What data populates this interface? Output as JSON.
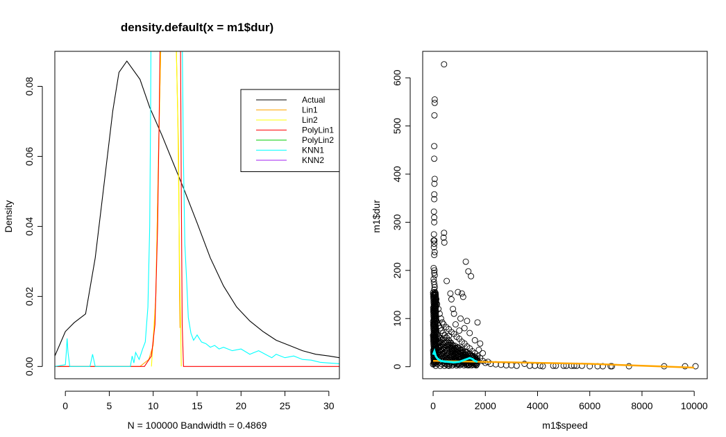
{
  "chart_data": [
    {
      "type": "line",
      "title": "density.default(x = m1$dur)",
      "xlabel": "N = 100000   Bandwidth = 0.4869",
      "ylabel": "Density",
      "xlim": [
        -1.2,
        31.2
      ],
      "ylim": [
        -0.0035,
        0.09
      ],
      "xticks": [
        0,
        5,
        10,
        15,
        20,
        25,
        30
      ],
      "yticks": [
        0.0,
        0.02,
        0.04,
        0.06,
        0.08
      ],
      "ytick_labels": [
        "0.00",
        "0.02",
        "0.04",
        "0.06",
        "0.08"
      ],
      "legend": {
        "position": "top-right"
      },
      "series": [
        {
          "name": "Actual",
          "color": "#000000",
          "x": [
            -1.2,
            0,
            1,
            2.3,
            3.4,
            4.5,
            5.4,
            6.1,
            7.0,
            8.5,
            9.6,
            11.0,
            12.3,
            13.6,
            15.0,
            16.5,
            18.0,
            19.5,
            21.0,
            22.5,
            24.0,
            25.5,
            27.0,
            28.5,
            30.0,
            31.2
          ],
          "y": [
            0.003,
            0.01,
            0.0125,
            0.015,
            0.031,
            0.054,
            0.073,
            0.084,
            0.0872,
            0.082,
            0.074,
            0.066,
            0.058,
            0.05,
            0.041,
            0.031,
            0.023,
            0.017,
            0.013,
            0.01,
            0.0075,
            0.006,
            0.0045,
            0.0035,
            0.003,
            0.0025
          ]
        },
        {
          "name": "Lin1",
          "color": "#FFA500",
          "x": [
            -1.2,
            8.5,
            9.5,
            10.0,
            10.3,
            10.6,
            10.9,
            11.0,
            12.6,
            12.9,
            13.0,
            13.05
          ],
          "y": [
            0.0,
            0.0,
            0.002,
            0.006,
            0.02,
            0.06,
            0.095,
            0.095,
            0.095,
            0.06,
            0.02,
            0.011
          ]
        },
        {
          "name": "Lin2",
          "color": "#FFFF00",
          "x": [
            9.8,
            10.3,
            10.6,
            10.9,
            11.0,
            12.6,
            12.8,
            13.0,
            13.2
          ],
          "y": [
            0.0,
            0.02,
            0.06,
            0.095,
            0.095,
            0.095,
            0.07,
            0.03,
            0.0
          ]
        },
        {
          "name": "PolyLin1",
          "color": "#FF0000",
          "x": [
            -1.2,
            9.0,
            9.8,
            10.2,
            10.5,
            10.7,
            10.8,
            13.1,
            13.2,
            13.3,
            13.45,
            31.2
          ],
          "y": [
            0.0,
            0.0,
            0.003,
            0.012,
            0.04,
            0.075,
            0.095,
            0.095,
            0.05,
            0.012,
            0.0,
            0.0
          ]
        },
        {
          "name": "PolyLin2",
          "color": "#00CD00",
          "x": [],
          "y": []
        },
        {
          "name": "KNN1",
          "color": "#00FFFF",
          "x": [
            -1.2,
            0.0,
            0.1,
            0.2,
            0.3,
            0.5,
            2.8,
            3.1,
            3.4,
            7.4,
            7.6,
            7.8,
            8.0,
            8.4,
            8.8,
            9.1,
            9.4,
            9.6,
            9.7,
            9.75,
            13.3,
            13.45,
            13.6,
            13.8,
            14.0,
            14.3,
            14.6,
            15.0,
            15.5,
            16.0,
            16.5,
            17.0,
            17.5,
            18.0,
            19.0,
            20.0,
            21.0,
            22.0,
            23.5,
            24.0,
            25.0,
            26.0,
            27.0,
            28.0,
            29.0,
            30.0,
            31.2
          ],
          "y": [
            0.0,
            0.0005,
            0.004,
            0.008,
            0.004,
            0.0,
            0.0,
            0.0035,
            0.0,
            0.0,
            0.003,
            0.001,
            0.004,
            0.002,
            0.005,
            0.007,
            0.017,
            0.04,
            0.07,
            0.095,
            0.095,
            0.058,
            0.035,
            0.025,
            0.014,
            0.0095,
            0.0075,
            0.009,
            0.007,
            0.0065,
            0.0055,
            0.006,
            0.005,
            0.0055,
            0.0045,
            0.005,
            0.0035,
            0.0045,
            0.0025,
            0.0035,
            0.0025,
            0.003,
            0.002,
            0.0018,
            0.0012,
            0.001,
            0.0008
          ]
        },
        {
          "name": "KNN2",
          "color": "#A020F0",
          "x": [],
          "y": []
        }
      ]
    },
    {
      "type": "scatter",
      "title": "",
      "xlabel": "m1$speed",
      "ylabel": "m1$dur",
      "xlim": [
        -400,
        10500
      ],
      "ylim": [
        -25,
        655
      ],
      "xticks": [
        0,
        2000,
        4000,
        6000,
        8000,
        10000
      ],
      "yticks": [
        0,
        100,
        200,
        300,
        400,
        500,
        600
      ],
      "points": [
        [
          60,
          555
        ],
        [
          60,
          548
        ],
        [
          50,
          522
        ],
        [
          40,
          458
        ],
        [
          40,
          432
        ],
        [
          60,
          390
        ],
        [
          50,
          380
        ],
        [
          45,
          358
        ],
        [
          40,
          348
        ],
        [
          30,
          322
        ],
        [
          40,
          300
        ],
        [
          40,
          310
        ],
        [
          30,
          275
        ],
        [
          20,
          262
        ],
        [
          50,
          262
        ],
        [
          40,
          255
        ],
        [
          30,
          248
        ],
        [
          60,
          238
        ],
        [
          40,
          232
        ],
        [
          20,
          205
        ],
        [
          50,
          200
        ],
        [
          40,
          195
        ],
        [
          60,
          190
        ],
        [
          20,
          182
        ],
        [
          30,
          176
        ],
        [
          50,
          170
        ],
        [
          60,
          165
        ],
        [
          40,
          160
        ],
        [
          70,
          155
        ],
        [
          80,
          150
        ],
        [
          100,
          145
        ],
        [
          120,
          140
        ],
        [
          90,
          135
        ],
        [
          150,
          130
        ],
        [
          60,
          125
        ],
        [
          200,
          120
        ],
        [
          110,
          115
        ],
        [
          250,
          110
        ],
        [
          80,
          105
        ],
        [
          300,
          100
        ],
        [
          130,
          95
        ],
        [
          350,
          92
        ],
        [
          170,
          90
        ],
        [
          400,
          88
        ],
        [
          220,
          85
        ],
        [
          500,
          82
        ],
        [
          270,
          80
        ],
        [
          600,
          78
        ],
        [
          320,
          75
        ],
        [
          700,
          72
        ],
        [
          380,
          70
        ],
        [
          800,
          68
        ],
        [
          450,
          65
        ],
        [
          900,
          62
        ],
        [
          520,
          60
        ],
        [
          1000,
          58
        ],
        [
          600,
          55
        ],
        [
          1100,
          52
        ],
        [
          680,
          50
        ],
        [
          1200,
          48
        ],
        [
          750,
          45
        ],
        [
          1300,
          42
        ],
        [
          850,
          40
        ],
        [
          1400,
          38
        ],
        [
          950,
          35
        ],
        [
          1500,
          32
        ],
        [
          1050,
          30
        ],
        [
          1600,
          28
        ],
        [
          1150,
          25
        ],
        [
          1700,
          22
        ],
        [
          1250,
          20
        ],
        [
          1800,
          18
        ],
        [
          1350,
          15
        ],
        [
          1900,
          12
        ],
        [
          1450,
          10
        ],
        [
          2000,
          8
        ],
        [
          2200,
          6
        ],
        [
          2400,
          5
        ],
        [
          2600,
          4
        ],
        [
          2800,
          3
        ],
        [
          3000,
          3
        ],
        [
          3200,
          2
        ],
        [
          3500,
          6
        ],
        [
          3700,
          2
        ],
        [
          3900,
          2
        ],
        [
          4100,
          2
        ],
        [
          4200,
          1
        ],
        [
          4600,
          2
        ],
        [
          4700,
          2
        ],
        [
          5000,
          2
        ],
        [
          5100,
          2
        ],
        [
          5300,
          2
        ],
        [
          5400,
          2
        ],
        [
          5500,
          2
        ],
        [
          5700,
          2
        ],
        [
          6000,
          1
        ],
        [
          6300,
          1
        ],
        [
          6500,
          1
        ],
        [
          6800,
          1
        ],
        [
          6850,
          1
        ],
        [
          7500,
          1
        ],
        [
          8850,
          1
        ],
        [
          9650,
          1
        ],
        [
          10050,
          1
        ],
        [
          420,
          628
        ],
        [
          420,
          278
        ],
        [
          400,
          268
        ],
        [
          430,
          258
        ],
        [
          520,
          178
        ],
        [
          1250,
          218
        ],
        [
          1350,
          198
        ],
        [
          1450,
          188
        ],
        [
          950,
          155
        ],
        [
          1100,
          152
        ],
        [
          1150,
          145
        ],
        [
          660,
          152
        ],
        [
          700,
          140
        ],
        [
          760,
          120
        ],
        [
          800,
          110
        ],
        [
          1050,
          100
        ],
        [
          1300,
          95
        ],
        [
          1700,
          92
        ],
        [
          860,
          88
        ],
        [
          1200,
          80
        ],
        [
          1000,
          75
        ],
        [
          1400,
          70
        ],
        [
          600,
          64
        ],
        [
          1600,
          55
        ],
        [
          1800,
          48
        ],
        [
          2100,
          10
        ],
        [
          1900,
          28
        ],
        [
          1750,
          35
        ]
      ],
      "fit_series": [
        {
          "name": "Lin1",
          "color": "#FFA500",
          "x": [
            0,
            100,
            500,
            1000,
            1500,
            2000,
            3000,
            4000,
            5000,
            6000,
            7000,
            8000,
            9000,
            10000
          ],
          "y": [
            12,
            12,
            11.5,
            11,
            10.5,
            10,
            9,
            8,
            7,
            6,
            4,
            2,
            0,
            -2
          ]
        },
        {
          "name": "KNN1",
          "color": "#00FFFF",
          "x": [
            0,
            50,
            100,
            150,
            200,
            300,
            400,
            600,
            800,
            1000,
            1200,
            1400,
            1500,
            1600,
            1700
          ],
          "y": [
            25,
            32,
            22,
            18,
            15,
            12,
            11,
            10,
            9,
            10,
            14,
            18,
            16,
            12,
            10
          ]
        }
      ]
    }
  ]
}
